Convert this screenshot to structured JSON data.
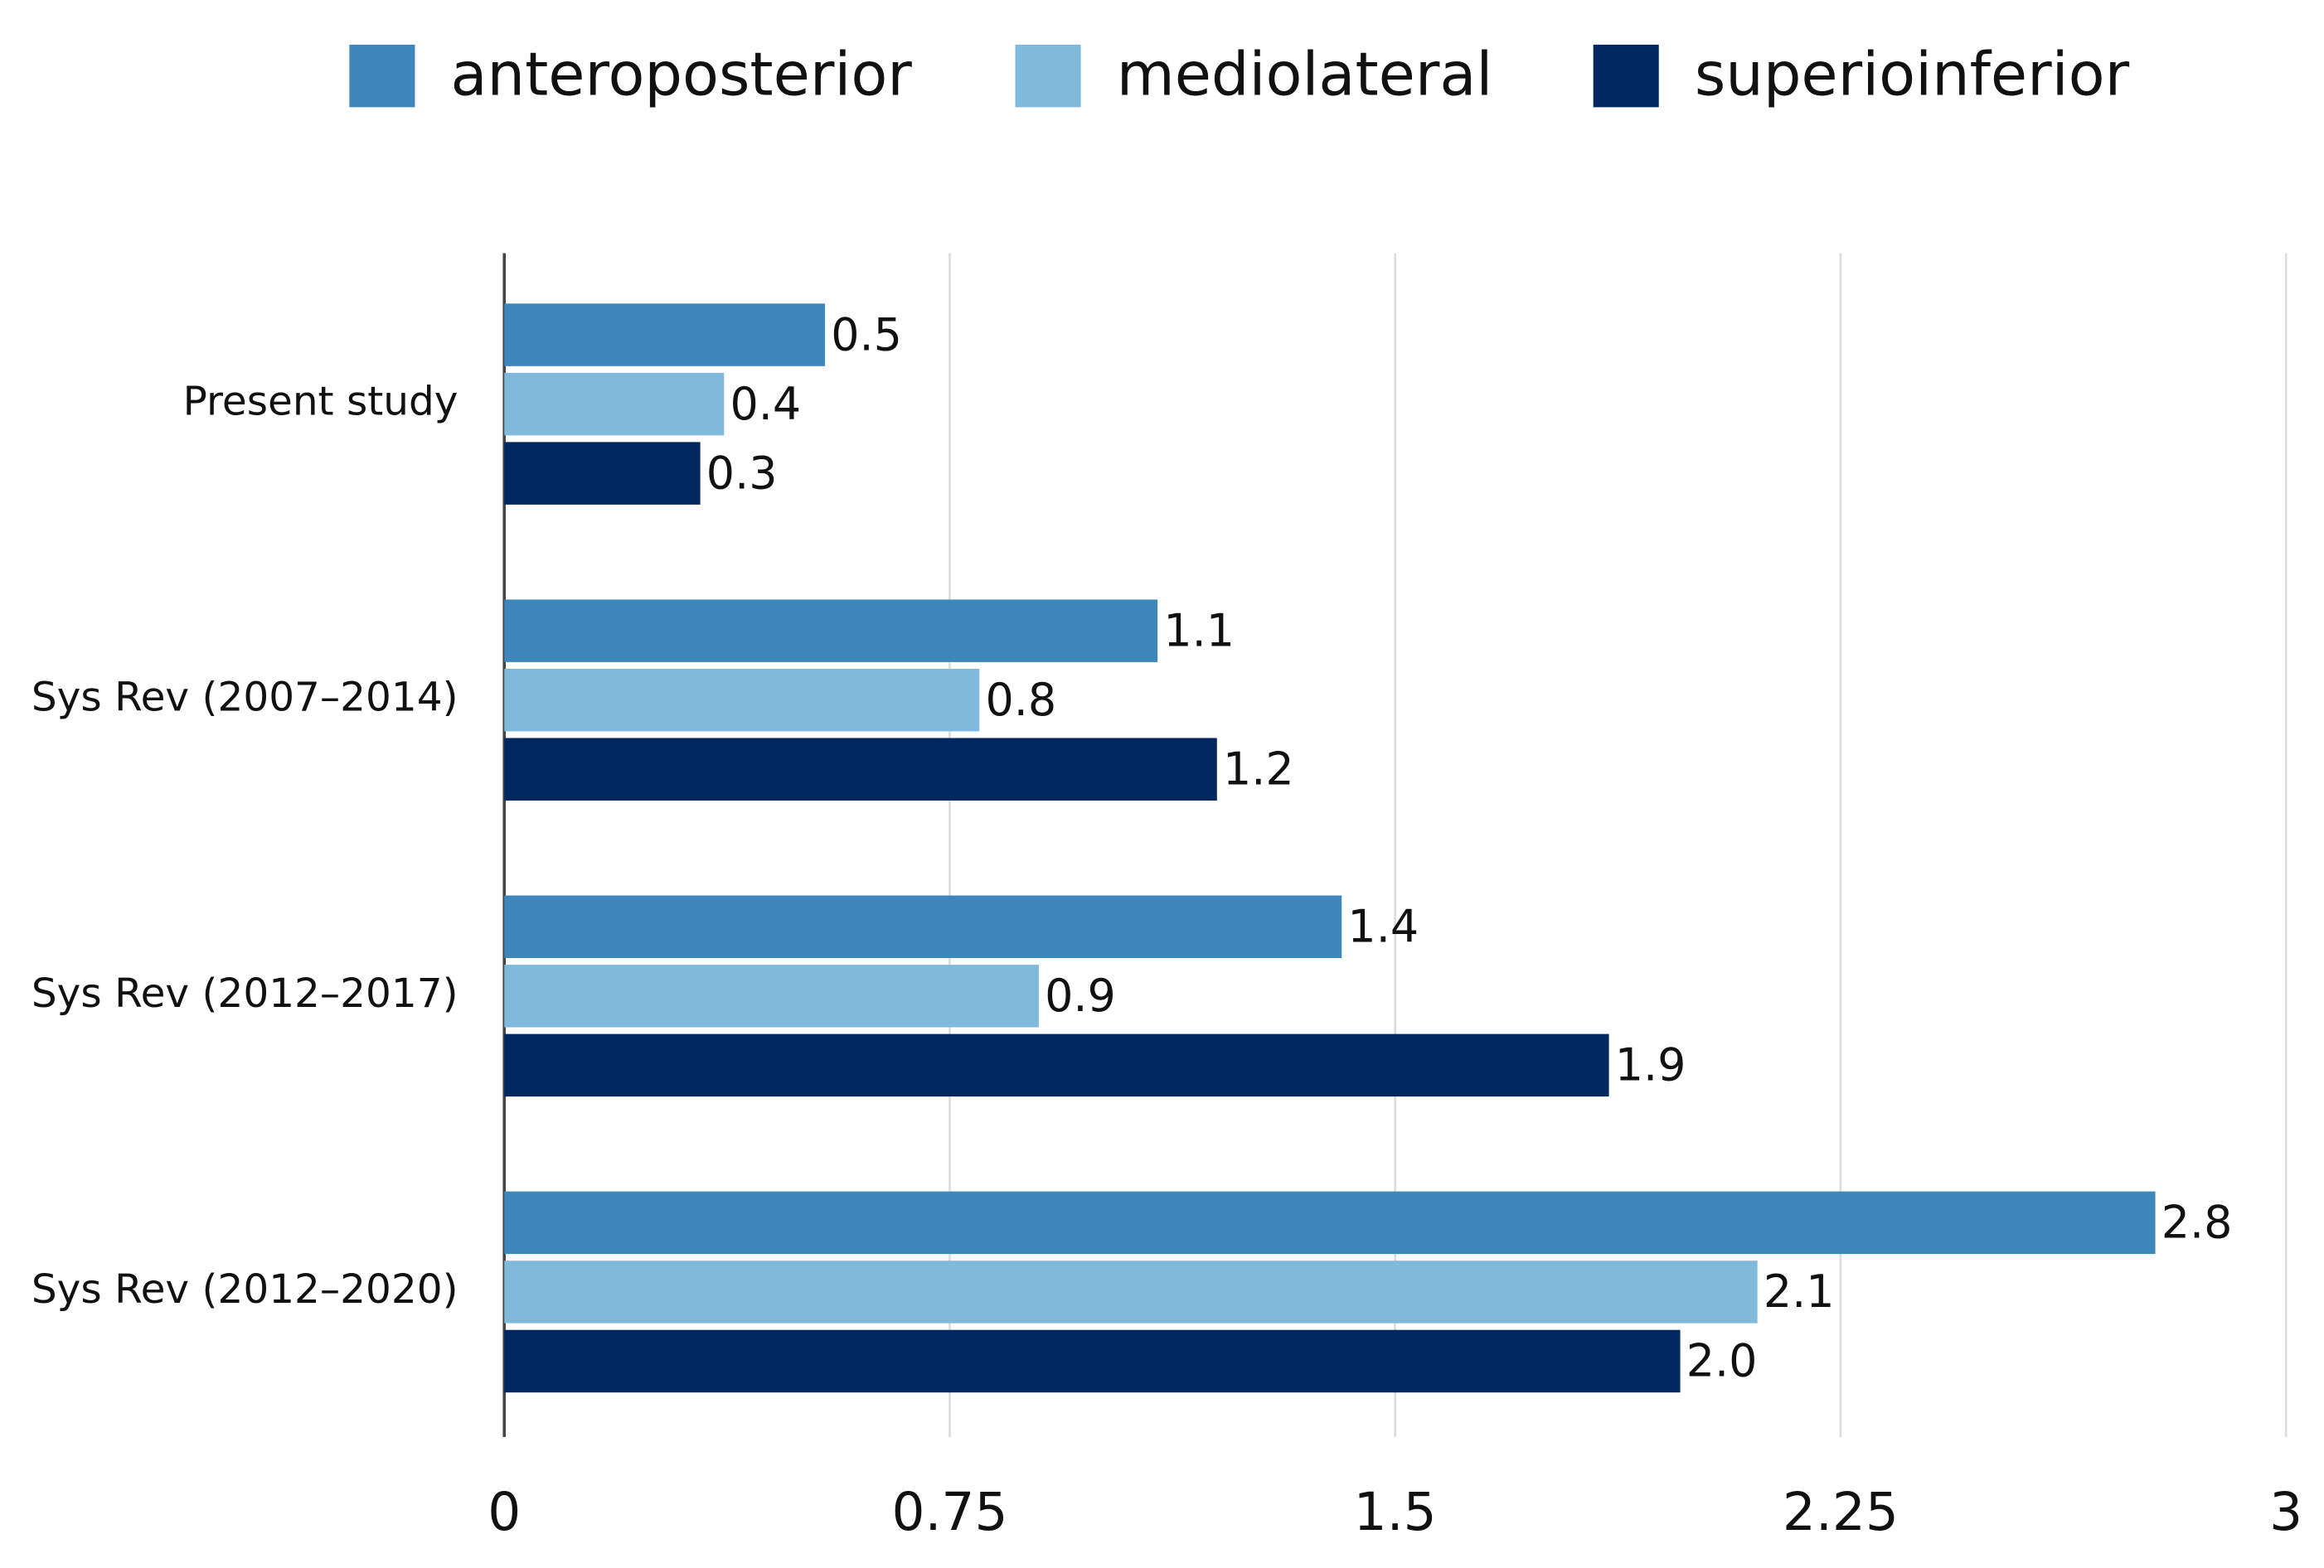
{
  "chart_data": {
    "type": "hbar",
    "categories": [
      "Present study",
      "Sys Rev (2007–2014)",
      "Sys Rev (2012–2017)",
      "Sys Rev (2012–2020)"
    ],
    "series": [
      {
        "name": "anteroposterior",
        "color": "#3d87bb",
        "values": [
          0.54,
          1.1,
          1.41,
          2.78
        ],
        "value_labels": [
          "0.5",
          "1.1",
          "1.4",
          "2.8"
        ]
      },
      {
        "name": "mediolateral",
        "color": "#7fbadd",
        "values": [
          0.37,
          0.8,
          0.9,
          2.11
        ],
        "value_labels": [
          "0.4",
          "0.8",
          "0.9",
          "2.1"
        ]
      },
      {
        "name": "superioinferior",
        "color": "#002760",
        "values": [
          0.33,
          1.2,
          1.86,
          1.98
        ],
        "value_labels": [
          "0.3",
          "1.2",
          "1.9",
          "2.0"
        ]
      }
    ],
    "xlim": [
      0,
      3
    ],
    "xticks": [
      0,
      0.75,
      1.5,
      2.25,
      3
    ],
    "grid": true,
    "legend": "top"
  }
}
